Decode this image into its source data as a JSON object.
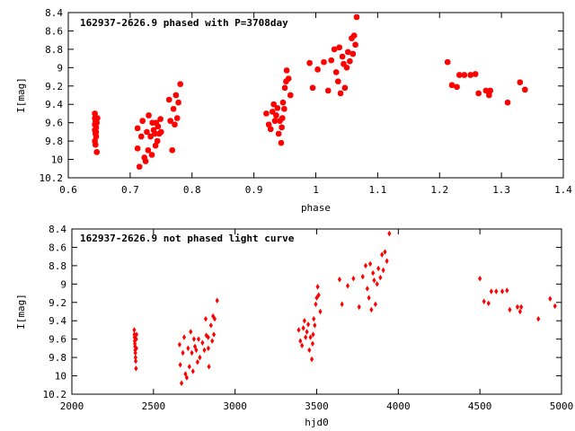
{
  "chart_data": [
    {
      "type": "scatter",
      "title": "162937-2626.9 phased with P=3708day",
      "xlabel": "phase",
      "ylabel": "I[mag]",
      "xlim": [
        0.6,
        1.4
      ],
      "ylim": [
        10.2,
        8.4
      ],
      "y_inverted": true,
      "x_ticks": [
        "0.6",
        "0.7",
        "0.8",
        "0.9",
        "1",
        "1.1",
        "1.2",
        "1.3",
        "1.4"
      ],
      "y_ticks": [
        "8.4",
        "8.6",
        "8.8",
        "9",
        "9.2",
        "9.4",
        "9.6",
        "9.8",
        "10",
        "10.2"
      ],
      "grid": false,
      "marker_color": "#ff0000",
      "points": [
        [
          0.643,
          9.5
        ],
        [
          0.643,
          9.55
        ],
        [
          0.644,
          9.58
        ],
        [
          0.643,
          9.62
        ],
        [
          0.645,
          9.65
        ],
        [
          0.643,
          9.68
        ],
        [
          0.644,
          9.72
        ],
        [
          0.645,
          9.75
        ],
        [
          0.643,
          9.8
        ],
        [
          0.644,
          9.84
        ],
        [
          0.646,
          9.92
        ],
        [
          0.646,
          9.6
        ],
        [
          0.645,
          9.7
        ],
        [
          0.647,
          9.55
        ],
        [
          0.712,
          9.66
        ],
        [
          0.712,
          9.88
        ],
        [
          0.715,
          10.08
        ],
        [
          0.718,
          9.75
        ],
        [
          0.72,
          9.58
        ],
        [
          0.723,
          9.98
        ],
        [
          0.725,
          10.02
        ],
        [
          0.727,
          9.7
        ],
        [
          0.729,
          9.9
        ],
        [
          0.73,
          9.52
        ],
        [
          0.733,
          9.75
        ],
        [
          0.735,
          9.95
        ],
        [
          0.736,
          9.6
        ],
        [
          0.738,
          9.68
        ],
        [
          0.74,
          9.72
        ],
        [
          0.741,
          9.85
        ],
        [
          0.742,
          9.6
        ],
        [
          0.744,
          9.8
        ],
        [
          0.745,
          9.64
        ],
        [
          0.747,
          9.72
        ],
        [
          0.749,
          9.56
        ],
        [
          0.75,
          9.7
        ],
        [
          0.763,
          9.35
        ],
        [
          0.765,
          9.58
        ],
        [
          0.768,
          9.9
        ],
        [
          0.77,
          9.45
        ],
        [
          0.772,
          9.62
        ],
        [
          0.774,
          9.3
        ],
        [
          0.776,
          9.55
        ],
        [
          0.778,
          9.38
        ],
        [
          0.781,
          9.18
        ],
        [
          0.92,
          9.5
        ],
        [
          0.924,
          9.62
        ],
        [
          0.927,
          9.67
        ],
        [
          0.93,
          9.48
        ],
        [
          0.932,
          9.4
        ],
        [
          0.934,
          9.58
        ],
        [
          0.936,
          9.52
        ],
        [
          0.938,
          9.44
        ],
        [
          0.94,
          9.72
        ],
        [
          0.942,
          9.58
        ],
        [
          0.944,
          9.82
        ],
        [
          0.945,
          9.65
        ],
        [
          0.946,
          9.55
        ],
        [
          0.947,
          9.38
        ],
        [
          0.949,
          9.45
        ],
        [
          0.95,
          9.22
        ],
        [
          0.952,
          9.15
        ],
        [
          0.953,
          9.03
        ],
        [
          0.956,
          9.12
        ],
        [
          0.959,
          9.3
        ],
        [
          0.99,
          8.95
        ],
        [
          0.995,
          9.22
        ],
        [
          1.003,
          9.02
        ],
        [
          1.013,
          8.94
        ],
        [
          1.02,
          9.25
        ],
        [
          1.025,
          8.92
        ],
        [
          1.03,
          8.8
        ],
        [
          1.033,
          9.05
        ],
        [
          1.036,
          9.15
        ],
        [
          1.038,
          8.78
        ],
        [
          1.04,
          9.28
        ],
        [
          1.043,
          8.88
        ],
        [
          1.045,
          8.96
        ],
        [
          1.047,
          9.22
        ],
        [
          1.05,
          9.0
        ],
        [
          1.052,
          8.83
        ],
        [
          1.055,
          8.93
        ],
        [
          1.058,
          8.68
        ],
        [
          1.06,
          8.85
        ],
        [
          1.062,
          8.65
        ],
        [
          1.064,
          8.75
        ],
        [
          1.066,
          8.45
        ],
        [
          1.213,
          8.94
        ],
        [
          1.22,
          9.19
        ],
        [
          1.228,
          9.21
        ],
        [
          1.232,
          9.08
        ],
        [
          1.24,
          9.08
        ],
        [
          1.25,
          9.08
        ],
        [
          1.258,
          9.07
        ],
        [
          1.263,
          9.28
        ],
        [
          1.275,
          9.25
        ],
        [
          1.28,
          9.3
        ],
        [
          1.282,
          9.25
        ],
        [
          1.31,
          9.38
        ],
        [
          1.33,
          9.16
        ],
        [
          1.338,
          9.24
        ]
      ]
    },
    {
      "type": "scatter",
      "title": "162937-2626.9 not phased light curve",
      "xlabel": "hjd0",
      "ylabel": "I[mag]",
      "xlim": [
        2000,
        5000
      ],
      "ylim": [
        10.2,
        8.4
      ],
      "y_inverted": true,
      "x_ticks": [
        "2000",
        "2500",
        "3000",
        "3500",
        "4000",
        "4500",
        "5000"
      ],
      "y_ticks": [
        "8.4",
        "8.6",
        "8.8",
        "9",
        "9.2",
        "9.4",
        "9.6",
        "9.8",
        "10",
        "10.2"
      ],
      "grid": false,
      "marker_color": "#ff0000",
      "points": [
        [
          2382,
          9.5
        ],
        [
          2383,
          9.55
        ],
        [
          2384,
          9.58
        ],
        [
          2385,
          9.62
        ],
        [
          2386,
          9.65
        ],
        [
          2387,
          9.68
        ],
        [
          2388,
          9.72
        ],
        [
          2389,
          9.75
        ],
        [
          2390,
          9.8
        ],
        [
          2391,
          9.84
        ],
        [
          2393,
          9.92
        ],
        [
          2394,
          9.6
        ],
        [
          2395,
          9.7
        ],
        [
          2396,
          9.55
        ],
        [
          2660,
          9.66
        ],
        [
          2664,
          9.88
        ],
        [
          2672,
          10.08
        ],
        [
          2680,
          9.75
        ],
        [
          2688,
          9.58
        ],
        [
          2696,
          9.98
        ],
        [
          2704,
          10.02
        ],
        [
          2712,
          9.7
        ],
        [
          2720,
          9.9
        ],
        [
          2728,
          9.52
        ],
        [
          2735,
          9.75
        ],
        [
          2742,
          9.95
        ],
        [
          2748,
          9.6
        ],
        [
          2754,
          9.68
        ],
        [
          2762,
          9.72
        ],
        [
          2770,
          9.85
        ],
        [
          2776,
          9.6
        ],
        [
          2784,
          9.8
        ],
        [
          2800,
          9.64
        ],
        [
          2812,
          9.72
        ],
        [
          2824,
          9.56
        ],
        [
          2836,
          9.7
        ],
        [
          2820,
          9.38
        ],
        [
          2835,
          9.58
        ],
        [
          2840,
          9.9
        ],
        [
          2852,
          9.45
        ],
        [
          2860,
          9.62
        ],
        [
          2865,
          9.35
        ],
        [
          2870,
          9.55
        ],
        [
          2875,
          9.38
        ],
        [
          2890,
          9.18
        ],
        [
          3390,
          9.5
        ],
        [
          3400,
          9.62
        ],
        [
          3410,
          9.67
        ],
        [
          3418,
          9.48
        ],
        [
          3425,
          9.4
        ],
        [
          3432,
          9.58
        ],
        [
          3440,
          9.52
        ],
        [
          3448,
          9.44
        ],
        [
          3455,
          9.72
        ],
        [
          3462,
          9.58
        ],
        [
          3470,
          9.82
        ],
        [
          3475,
          9.65
        ],
        [
          3478,
          9.55
        ],
        [
          3482,
          9.38
        ],
        [
          3488,
          9.45
        ],
        [
          3494,
          9.22
        ],
        [
          3500,
          9.15
        ],
        [
          3506,
          9.03
        ],
        [
          3512,
          9.12
        ],
        [
          3522,
          9.3
        ],
        [
          3640,
          8.95
        ],
        [
          3655,
          9.22
        ],
        [
          3690,
          9.02
        ],
        [
          3725,
          8.94
        ],
        [
          3760,
          9.25
        ],
        [
          3782,
          8.92
        ],
        [
          3800,
          8.8
        ],
        [
          3810,
          9.05
        ],
        [
          3820,
          9.15
        ],
        [
          3828,
          8.78
        ],
        [
          3835,
          9.28
        ],
        [
          3845,
          8.88
        ],
        [
          3852,
          8.96
        ],
        [
          3860,
          9.22
        ],
        [
          3870,
          9.0
        ],
        [
          3878,
          8.83
        ],
        [
          3890,
          8.93
        ],
        [
          3900,
          8.68
        ],
        [
          3908,
          8.85
        ],
        [
          3918,
          8.65
        ],
        [
          3930,
          8.75
        ],
        [
          3945,
          8.45
        ],
        [
          4500,
          8.94
        ],
        [
          4525,
          9.19
        ],
        [
          4553,
          9.21
        ],
        [
          4570,
          9.08
        ],
        [
          4600,
          9.08
        ],
        [
          4637,
          9.08
        ],
        [
          4666,
          9.07
        ],
        [
          4683,
          9.28
        ],
        [
          4730,
          9.25
        ],
        [
          4746,
          9.3
        ],
        [
          4753,
          9.25
        ],
        [
          4858,
          9.38
        ],
        [
          4930,
          9.16
        ],
        [
          4960,
          9.24
        ]
      ]
    }
  ]
}
